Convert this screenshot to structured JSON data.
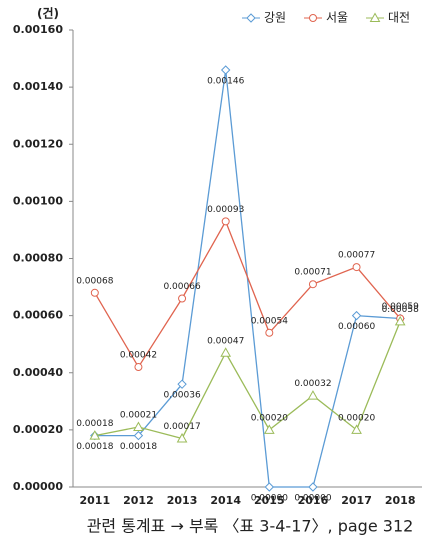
{
  "chart_data": {
    "type": "line",
    "unit_label": "(건)",
    "footer": "관련 통계표 → 부록 〈표 3-4-17〉, page 312",
    "categories": [
      "2011",
      "2012",
      "2013",
      "2014",
      "2015",
      "2016",
      "2017",
      "2018"
    ],
    "ylim": [
      0,
      0.0016
    ],
    "yticks": [
      {
        "value": 0,
        "label": "0.00000"
      },
      {
        "value": 0.0002,
        "label": "0.00020"
      },
      {
        "value": 0.0004,
        "label": "0.00040"
      },
      {
        "value": 0.0006,
        "label": "0.00060"
      },
      {
        "value": 0.0008,
        "label": "0.00080"
      },
      {
        "value": 0.001,
        "label": "0.00100"
      },
      {
        "value": 0.0012,
        "label": "0.00120"
      },
      {
        "value": 0.0014,
        "label": "0.00140"
      },
      {
        "value": 0.0016,
        "label": "0.00160"
      }
    ],
    "grid": false,
    "legend": "top-right",
    "series": [
      {
        "name": "강원",
        "color": "#5b9bd5",
        "marker": "diamond",
        "values": [
          0.00018,
          0.00018,
          0.00036,
          0.00146,
          0,
          0,
          0.0006,
          0.00059
        ],
        "value_labels": [
          "0.00018",
          "0.00018",
          "0.00036",
          "0.00146",
          "0.00000",
          "0.00000",
          "0.00060",
          null
        ]
      },
      {
        "name": "서울",
        "color": "#e0644f",
        "marker": "circle",
        "values": [
          0.00068,
          0.00042,
          0.00066,
          0.00093,
          0.00054,
          0.00071,
          0.00077,
          0.00059
        ],
        "value_labels": [
          "0.00068",
          "0.00042",
          "0.00066",
          "0.00093",
          "0.00054",
          "0.00071",
          "0.00077",
          "0.00059"
        ]
      },
      {
        "name": "대전",
        "color": "#9bbb59",
        "marker": "triangle",
        "values": [
          0.00018,
          0.00021,
          0.00017,
          0.00047,
          0.0002,
          0.00032,
          0.0002,
          0.00058
        ],
        "value_labels": [
          "0.00018",
          "0.00021",
          "0.00017",
          "0.00047",
          "0.00020",
          "0.00032",
          "0.00020",
          "0.00058"
        ]
      }
    ]
  }
}
